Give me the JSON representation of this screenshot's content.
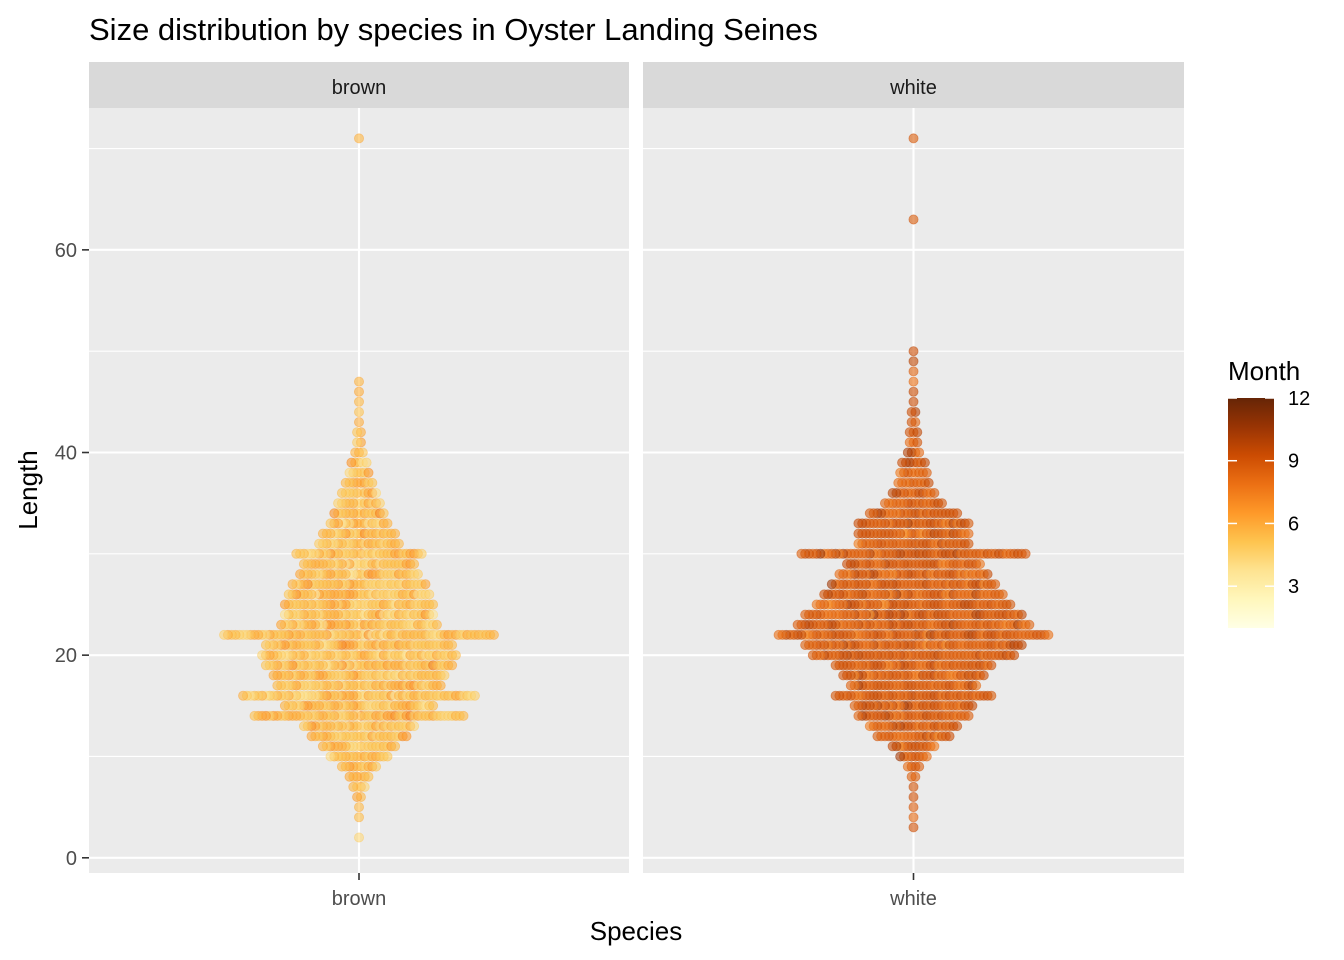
{
  "chart_data": {
    "type": "scatter",
    "subtype": "beeswarm",
    "title": "Size distribution by species in Oyster Landing Seines",
    "xlabel": "Species",
    "ylabel": "Length",
    "ylim": [
      -1.5,
      74
    ],
    "yticks": [
      0,
      20,
      40,
      60
    ],
    "facets": [
      "brown",
      "white"
    ],
    "x_tick_labels": [
      "brown",
      "white"
    ],
    "grid": true,
    "legend": {
      "title": "Month",
      "placement": "right",
      "range": [
        1,
        12
      ],
      "ticks": [
        3,
        6,
        9,
        12
      ],
      "colors": [
        "#ffffe5",
        "#fff7bc",
        "#fee391",
        "#fec44f",
        "#fe9929",
        "#ec7014",
        "#cc4c02",
        "#993404",
        "#662506"
      ]
    },
    "series": [
      {
        "name": "brown",
        "month_mean": 5.2,
        "month_spread": 1.0,
        "length_counts": {
          "2": 1,
          "4": 1,
          "5": 1,
          "6": 2,
          "7": 4,
          "8": 6,
          "9": 10,
          "10": 16,
          "11": 20,
          "12": 26,
          "13": 30,
          "14": 56,
          "15": 40,
          "16": 62,
          "17": 44,
          "18": 46,
          "19": 50,
          "20": 52,
          "21": 50,
          "22": 72,
          "23": 42,
          "24": 40,
          "25": 40,
          "26": 38,
          "27": 36,
          "28": 32,
          "29": 30,
          "30": 34,
          "31": 22,
          "32": 20,
          "33": 16,
          "34": 14,
          "35": 12,
          "36": 10,
          "37": 8,
          "38": 6,
          "39": 5,
          "40": 3,
          "41": 2,
          "42": 2,
          "43": 1,
          "44": 1,
          "45": 1,
          "46": 1,
          "47": 1,
          "71": 1
        }
      },
      {
        "name": "white",
        "month_mean": 8.6,
        "month_spread": 0.9,
        "length_counts": {
          "3": 1,
          "4": 1,
          "5": 1,
          "6": 1,
          "7": 1,
          "8": 2,
          "9": 4,
          "10": 8,
          "11": 12,
          "12": 20,
          "13": 24,
          "14": 30,
          "15": 32,
          "16": 42,
          "17": 34,
          "18": 38,
          "19": 42,
          "20": 54,
          "21": 58,
          "22": 72,
          "23": 62,
          "24": 58,
          "25": 52,
          "26": 48,
          "27": 44,
          "28": 40,
          "29": 36,
          "30": 60,
          "31": 30,
          "32": 30,
          "33": 30,
          "34": 24,
          "35": 16,
          "36": 12,
          "37": 9,
          "38": 8,
          "39": 7,
          "40": 4,
          "41": 3,
          "42": 3,
          "43": 2,
          "44": 2,
          "45": 1,
          "46": 1,
          "47": 1,
          "48": 1,
          "49": 1,
          "50": 1,
          "63": 1,
          "71": 1
        }
      }
    ]
  }
}
